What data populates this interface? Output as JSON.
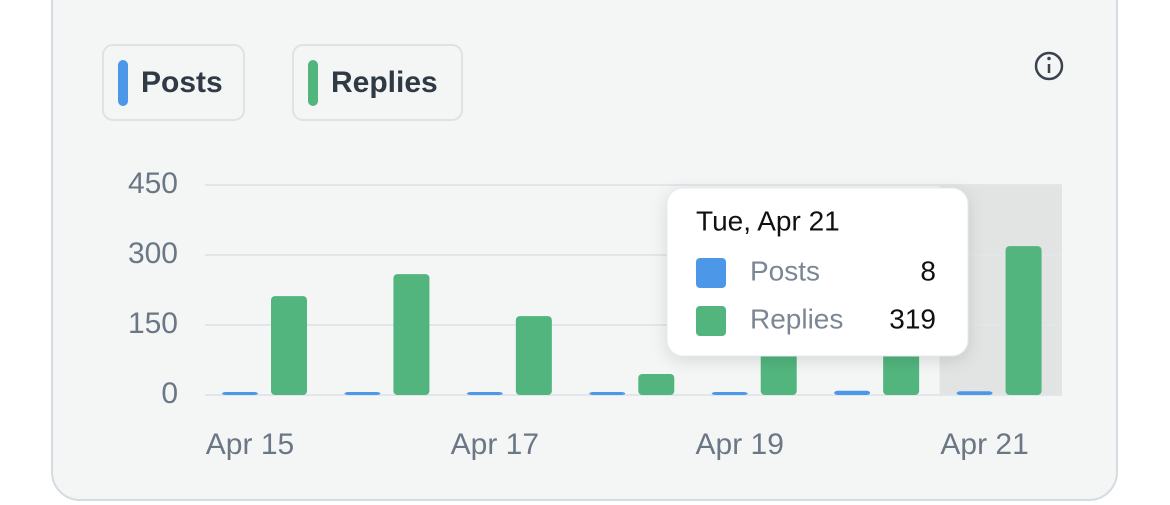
{
  "chart_data": {
    "type": "bar",
    "categories": [
      "Apr 15",
      null,
      "Apr 17",
      null,
      "Apr 19",
      null,
      "Apr 21"
    ],
    "series": [
      {
        "name": "Posts",
        "color": "#4c97e8",
        "values": [
          3,
          2,
          4,
          2,
          3,
          9,
          8
        ]
      },
      {
        "name": "Replies",
        "color": "#52b57e",
        "values": [
          212,
          259,
          169,
          45,
          130,
          150,
          319
        ]
      }
    ],
    "ylim": [
      0,
      450
    ],
    "yticks": [
      0,
      150,
      300,
      450
    ],
    "grid": true,
    "tooltip": {
      "title": "Tue, Apr 21"
    }
  }
}
